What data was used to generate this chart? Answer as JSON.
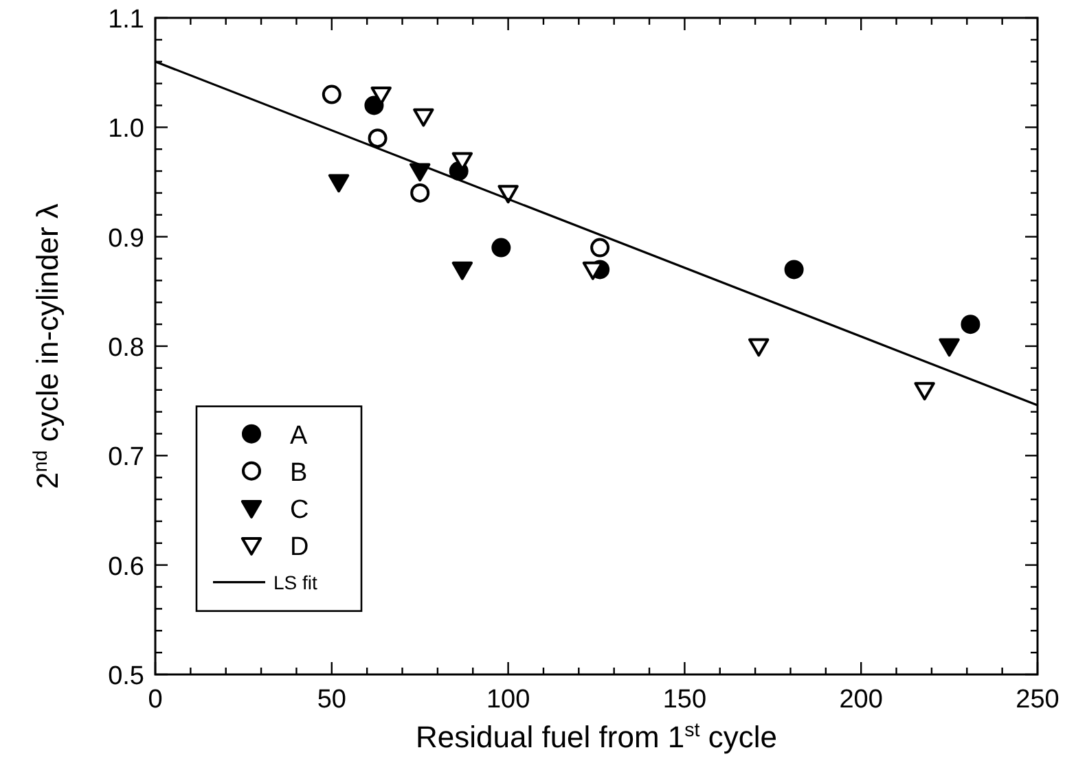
{
  "chart_data": {
    "type": "scatter",
    "xlabel": "Residual fuel from 1$^{st}$ cycle",
    "ylabel": "2$^{nd}$ cycle in-cylinder λ",
    "xlim": [
      0,
      250
    ],
    "ylim": [
      0.5,
      1.1
    ],
    "xticks": [
      0,
      50,
      100,
      150,
      200,
      250
    ],
    "yticks": [
      0.5,
      0.6,
      0.7,
      0.8,
      0.9,
      {
        "value": 1,
        "label": "1.0"
      },
      1.1
    ],
    "grid": false,
    "legend": "left",
    "series": [
      {
        "name": "A",
        "marker": "circle",
        "color": "#000000",
        "x": [
          62,
          86,
          98,
          126,
          181,
          231
        ],
        "values": [
          1.02,
          0.96,
          0.89,
          0.87,
          0.87,
          0.82
        ]
      },
      {
        "name": "B",
        "marker": "circle",
        "color": "#ffffff",
        "x": [
          50,
          63,
          75,
          126
        ],
        "values": [
          1.03,
          0.99,
          0.94,
          0.89
        ]
      },
      {
        "name": "C",
        "marker": "triangle",
        "color": "#000000",
        "x": [
          52,
          75,
          87,
          225
        ],
        "values": [
          0.95,
          0.96,
          0.87,
          0.8
        ]
      },
      {
        "name": "D",
        "marker": "triangle",
        "color": "#ffffff",
        "x": [
          64,
          76,
          87,
          100,
          124,
          171,
          218
        ],
        "values": [
          1.03,
          1.01,
          0.97,
          0.94,
          0.87,
          0.8,
          0.76
        ]
      },
      {
        "name": "LS fit",
        "type": "line",
        "line_style": "solid",
        "color": "#000000",
        "x": [
          0,
          250
        ],
        "values": [
          1.06,
          0.746
        ]
      }
    ]
  }
}
